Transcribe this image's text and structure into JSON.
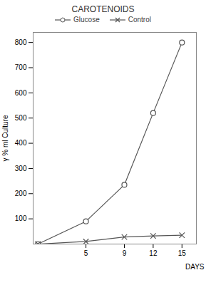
{
  "chart_data": {
    "type": "line",
    "title": "CAROTENOIDS",
    "xlabel": "DAYS",
    "ylabel": "γ % ml Culture",
    "x": [
      0,
      5,
      9,
      12,
      15
    ],
    "series": [
      {
        "name": "Glucose",
        "color": "#555555",
        "marker": "circle",
        "values": [
          0,
          90,
          235,
          520,
          800
        ]
      },
      {
        "name": "Control",
        "color": "#555555",
        "marker": "x",
        "values": [
          0,
          10,
          28,
          32,
          35
        ]
      }
    ],
    "xlim": [
      -0.5,
      16.5
    ],
    "ylim": [
      0,
      840
    ],
    "xticks": [
      5,
      9,
      12,
      15
    ],
    "yticks": [
      100,
      200,
      300,
      400,
      500,
      600,
      700,
      800
    ],
    "grid": false,
    "legend": "upper left"
  }
}
